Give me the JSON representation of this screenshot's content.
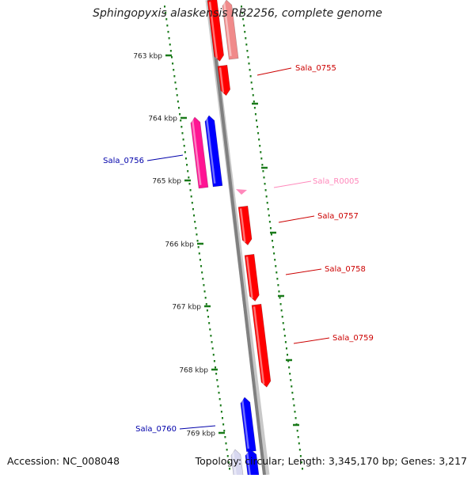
{
  "title": "Sphingopyxis alaskensis RB2256, complete genome",
  "accession_label": "Accession: NC_008048",
  "topology_label": "Topology: circular; Length: 3,345,170 bp; Genes: 3,217",
  "colors": {
    "backbone": "#808080",
    "gene_forward": "#ff0000",
    "gene_forward_faded": "#f08a8a",
    "gene_reverse": "#0000ff",
    "gene_reverse_faded": "#d8d8f0",
    "gene_other": "#ff1493",
    "rna": "#ff88bb",
    "tick": "#1a7a1a",
    "label_forward": "#cc0000",
    "label_reverse": "#0000aa",
    "label_rna": "#ff88bb"
  },
  "ticks": [
    {
      "label": "763 kbp"
    },
    {
      "label": "764 kbp"
    },
    {
      "label": "765 kbp"
    },
    {
      "label": "766 kbp"
    },
    {
      "label": "767 kbp"
    },
    {
      "label": "768 kbp"
    },
    {
      "label": "769 kbp"
    }
  ],
  "gene_labels": [
    {
      "name": "Sala_0755",
      "type": "forward"
    },
    {
      "name": "Sala_0756",
      "type": "reverse"
    },
    {
      "name": "Sala_R0005",
      "type": "rna"
    },
    {
      "name": "Sala_0757",
      "type": "forward"
    },
    {
      "name": "Sala_0758",
      "type": "forward"
    },
    {
      "name": "Sala_0759",
      "type": "forward"
    },
    {
      "name": "Sala_0760",
      "type": "reverse"
    }
  ]
}
